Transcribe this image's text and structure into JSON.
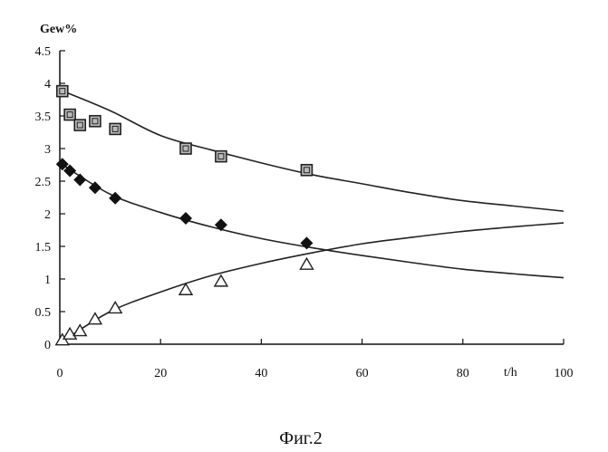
{
  "chart_data": {
    "type": "scatter",
    "ylabel": "Gew%",
    "xlabel": "t/h",
    "caption": "Фиг.2",
    "xlim": [
      0,
      100
    ],
    "ylim": [
      0,
      4.5
    ],
    "x_ticks": [
      0,
      20,
      40,
      60,
      80,
      100
    ],
    "y_ticks": [
      "0",
      "0.5",
      "1",
      "1.5",
      "2",
      "2.5",
      "3",
      "3.5",
      "4",
      "4.5"
    ],
    "grid": false,
    "series": [
      {
        "marker": "square",
        "points": [
          [
            0.5,
            3.88
          ],
          [
            2,
            3.52
          ],
          [
            4,
            3.36
          ],
          [
            7,
            3.42
          ],
          [
            11,
            3.3
          ],
          [
            25,
            3.0
          ],
          [
            32,
            2.88
          ],
          [
            49,
            2.67
          ]
        ],
        "fit": [
          [
            0,
            3.9
          ],
          [
            10,
            3.58
          ],
          [
            20,
            3.2
          ],
          [
            30,
            2.98
          ],
          [
            40,
            2.78
          ],
          [
            50,
            2.6
          ],
          [
            60,
            2.46
          ],
          [
            70,
            2.32
          ],
          [
            80,
            2.2
          ],
          [
            90,
            2.12
          ],
          [
            100,
            2.04
          ]
        ]
      },
      {
        "marker": "diamond",
        "points": [
          [
            0.5,
            2.76
          ],
          [
            2,
            2.66
          ],
          [
            4,
            2.52
          ],
          [
            7,
            2.4
          ],
          [
            11,
            2.24
          ],
          [
            25,
            1.93
          ],
          [
            32,
            1.83
          ],
          [
            49,
            1.55
          ]
        ],
        "fit": [
          [
            0,
            2.78
          ],
          [
            10,
            2.3
          ],
          [
            20,
            2.02
          ],
          [
            30,
            1.8
          ],
          [
            40,
            1.62
          ],
          [
            50,
            1.48
          ],
          [
            60,
            1.36
          ],
          [
            70,
            1.25
          ],
          [
            80,
            1.15
          ],
          [
            90,
            1.08
          ],
          [
            100,
            1.02
          ]
        ]
      },
      {
        "marker": "triangle",
        "points": [
          [
            0.5,
            0.06
          ],
          [
            2,
            0.15
          ],
          [
            4,
            0.2
          ],
          [
            7,
            0.38
          ],
          [
            11,
            0.55
          ],
          [
            25,
            0.83
          ],
          [
            32,
            0.96
          ],
          [
            49,
            1.22
          ]
        ],
        "fit": [
          [
            0,
            0.02
          ],
          [
            10,
            0.5
          ],
          [
            20,
            0.8
          ],
          [
            30,
            1.05
          ],
          [
            40,
            1.24
          ],
          [
            50,
            1.4
          ],
          [
            60,
            1.54
          ],
          [
            70,
            1.64
          ],
          [
            80,
            1.73
          ],
          [
            90,
            1.8
          ],
          [
            100,
            1.86
          ]
        ]
      }
    ]
  }
}
